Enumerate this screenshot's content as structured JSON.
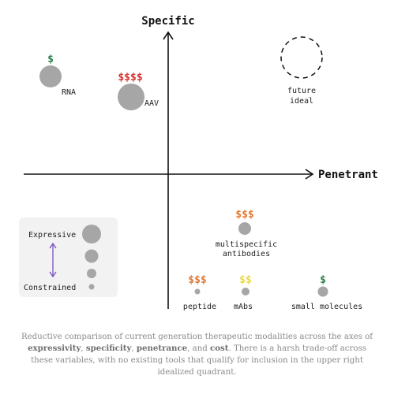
{
  "axes": {
    "y_label": "Specific",
    "x_label": "Penetrant"
  },
  "colors": {
    "dot": "#a6a6a6",
    "legend_bg": "#f2f2f2",
    "legend_arrow": "#7a4fbf",
    "cost_green": "#2f7d4d",
    "cost_red": "#d9302c",
    "cost_orange": "#e07a32",
    "cost_yellow": "#e8d84a"
  },
  "modalities": {
    "rna": {
      "label": "RNA",
      "cost": "$",
      "cost_color": "green"
    },
    "aav": {
      "label": "AAV",
      "cost": "$$$$",
      "cost_color": "red"
    },
    "future": {
      "label_line1": "future",
      "label_line2": "ideal"
    },
    "multispecific": {
      "label_line1": "multispecific",
      "label_line2": "antibodies",
      "cost": "$$$",
      "cost_color": "orange"
    },
    "peptide": {
      "label": "peptide",
      "cost": "$$$",
      "cost_color": "orange"
    },
    "mabs": {
      "label": "mAbs",
      "cost": "$$",
      "cost_color": "yellow"
    },
    "small": {
      "label": "small molecules",
      "cost": "$",
      "cost_color": "green"
    }
  },
  "legend": {
    "top_label": "Expressive",
    "bottom_label": "Constrained"
  },
  "caption": {
    "p1": "Reductive comparison of current generation therapeutic modalities across the axes of ",
    "b1": "expressivity",
    "p2": ", ",
    "b2": "specificity",
    "p3": ", ",
    "b3": "penetrance",
    "p4": ", and ",
    "b4": "cost",
    "p5": ". There is a harsh trade-off across these variables, with no existing tools that qualify for inclusion in the upper right idealized quadrant."
  }
}
